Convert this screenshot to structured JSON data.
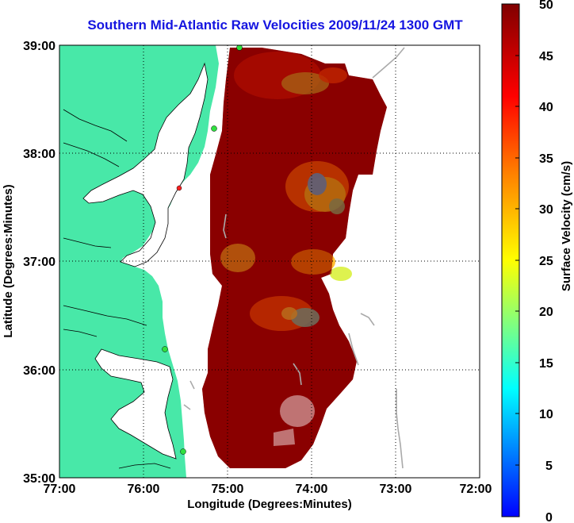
{
  "title": "Southern Mid-Atlantic Raw Velocities 2009/11/24 1300 GMT",
  "map": {
    "xlabel": "Longitude (Degrees:Minutes)",
    "ylabel": "Latitude (Degrees:Minutes)",
    "x_ticks": [
      "77:00",
      "76:00",
      "75:00",
      "74:00",
      "73:00",
      "72:00"
    ],
    "y_ticks": [
      "39:00",
      "38:00",
      "37:00",
      "36:00",
      "35:00"
    ],
    "lon_range": [
      -77,
      -72
    ],
    "lat_range": [
      35,
      39
    ],
    "grid": "dotted",
    "land_color": "#48e8a8",
    "field_base_color": "#8b0000"
  },
  "colorbar": {
    "label": "Surface Velocity (cm/s)",
    "ticks": [
      "50",
      "45",
      "40",
      "35",
      "30",
      "25",
      "20",
      "15",
      "10",
      "5",
      "0"
    ],
    "range": [
      0,
      50
    ],
    "colors": [
      "#0000ff",
      "#00ffff",
      "#ffff00",
      "#ff8000",
      "#ff0000",
      "#800000"
    ]
  }
}
